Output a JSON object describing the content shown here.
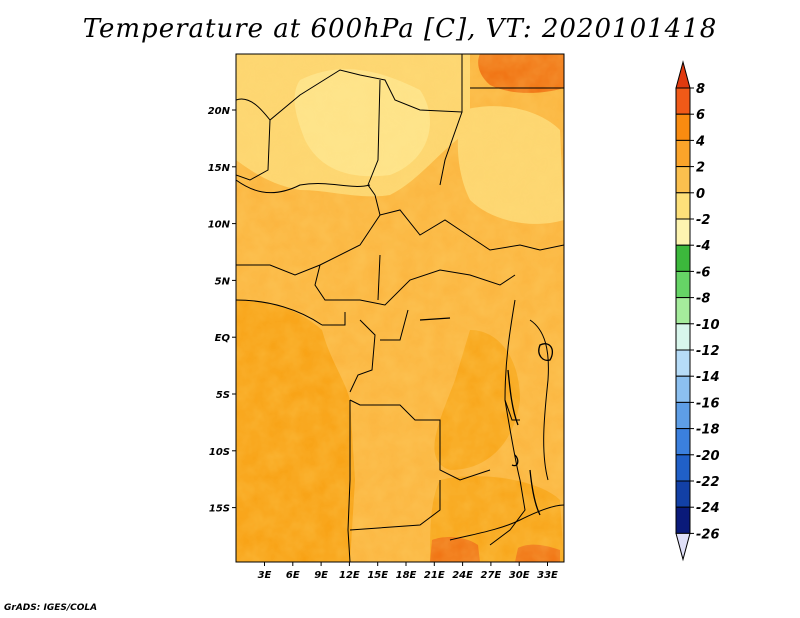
{
  "title": "Temperature at 600hPa [C], VT: 2020101418",
  "credit": "GrADS: IGES/COLA",
  "map": {
    "lat_labels": [
      "20N",
      "15N",
      "10N",
      "5N",
      "EQ",
      "5S",
      "10S",
      "15S"
    ],
    "lon_labels": [
      "3E",
      "6E",
      "9E",
      "12E",
      "15E",
      "18E",
      "21E",
      "24E",
      "27E",
      "30E",
      "33E"
    ]
  },
  "colorbar": {
    "labels": [
      "8",
      "6",
      "4",
      "2",
      "0",
      "-2",
      "-4",
      "-6",
      "-8",
      "-10",
      "-12",
      "-14",
      "-16",
      "-18",
      "-20",
      "-22",
      "-24",
      "-26"
    ],
    "colors": [
      "#e03a0f",
      "#f05a18",
      "#f98b10",
      "#fba42a",
      "#fbc04e",
      "#fde07a",
      "#fdf4b0",
      "#3cb83c",
      "#66d466",
      "#a5ec9c",
      "#d8f6ec",
      "#b6dcf8",
      "#8cc0f0",
      "#5e9ee6",
      "#3b80de",
      "#2060c8",
      "#1240a6",
      "#0a1a7a",
      "#e0e0f8"
    ]
  }
}
